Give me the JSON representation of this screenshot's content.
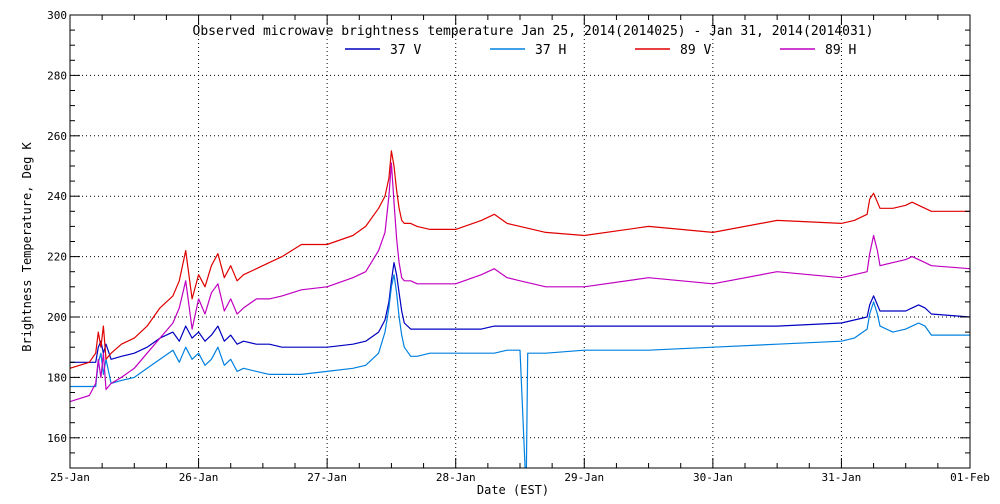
{
  "chart_data": {
    "type": "line",
    "title": "Observed microwave brightness temperature Jan 25, 2014(2014025) - Jan 31, 2014(2014031)",
    "xlabel": "Date (EST)",
    "ylabel": "Brightness Temperature, Deg K",
    "xlim": [
      0,
      7
    ],
    "ylim": [
      150,
      300
    ],
    "grid": true,
    "legend_position": "top-center",
    "x_ticks": [
      {
        "value": 0,
        "label": "25-Jan"
      },
      {
        "value": 1,
        "label": "26-Jan"
      },
      {
        "value": 2,
        "label": "27-Jan"
      },
      {
        "value": 3,
        "label": "28-Jan"
      },
      {
        "value": 4,
        "label": "29-Jan"
      },
      {
        "value": 5,
        "label": "30-Jan"
      },
      {
        "value": 6,
        "label": "31-Jan"
      },
      {
        "value": 7,
        "label": "01-Feb"
      }
    ],
    "y_ticks": [
      160,
      180,
      200,
      220,
      240,
      260,
      280,
      300
    ],
    "series": [
      {
        "name": "37 V",
        "color": "#0000c0",
        "x": [
          0,
          0.2,
          0.22,
          0.24,
          0.26,
          0.28,
          0.32,
          0.4,
          0.5,
          0.6,
          0.7,
          0.8,
          0.85,
          0.9,
          0.95,
          1.0,
          1.05,
          1.1,
          1.15,
          1.2,
          1.25,
          1.3,
          1.35,
          1.45,
          1.55,
          1.65,
          1.8,
          2.0,
          2.2,
          2.3,
          2.4,
          2.45,
          2.48,
          2.5,
          2.52,
          2.54,
          2.56,
          2.58,
          2.6,
          2.65,
          2.7,
          2.8,
          3.0,
          3.2,
          3.3,
          3.4,
          3.5,
          3.6,
          3.7,
          4.0,
          4.5,
          5.0,
          5.5,
          6.0,
          6.1,
          6.2,
          6.22,
          6.25,
          6.28,
          6.3,
          6.4,
          6.5,
          6.55,
          6.6,
          6.65,
          6.7,
          7.0
        ],
        "y": [
          185,
          185,
          190,
          192,
          188,
          191,
          186,
          187,
          188,
          190,
          193,
          195,
          192,
          197,
          193,
          195,
          192,
          194,
          197,
          192,
          194,
          191,
          192,
          191,
          191,
          190,
          190,
          190,
          191,
          192,
          195,
          199,
          205,
          212,
          218,
          214,
          208,
          202,
          198,
          196,
          196,
          196,
          196,
          196,
          197,
          197,
          197,
          197,
          197,
          197,
          197,
          197,
          197,
          198,
          199,
          200,
          204,
          207,
          204,
          202,
          202,
          202,
          203,
          204,
          203,
          201,
          200
        ]
      },
      {
        "name": "37 H",
        "color": "#0080e0",
        "x": [
          0,
          0.2,
          0.22,
          0.24,
          0.26,
          0.28,
          0.32,
          0.4,
          0.5,
          0.6,
          0.7,
          0.8,
          0.85,
          0.9,
          0.95,
          1.0,
          1.05,
          1.1,
          1.15,
          1.2,
          1.25,
          1.3,
          1.35,
          1.45,
          1.55,
          1.65,
          1.8,
          2.0,
          2.2,
          2.3,
          2.4,
          2.45,
          2.48,
          2.5,
          2.52,
          2.54,
          2.56,
          2.58,
          2.6,
          2.65,
          2.7,
          2.8,
          3.0,
          3.2,
          3.3,
          3.4,
          3.5,
          3.54,
          3.55,
          3.56,
          3.6,
          3.7,
          4.0,
          4.5,
          5.0,
          5.5,
          6.0,
          6.1,
          6.2,
          6.22,
          6.25,
          6.28,
          6.3,
          6.4,
          6.5,
          6.55,
          6.6,
          6.65,
          6.7,
          7.0
        ],
        "y": [
          177,
          177,
          185,
          188,
          181,
          186,
          178,
          179,
          180,
          183,
          186,
          189,
          185,
          190,
          186,
          188,
          184,
          186,
          190,
          184,
          186,
          182,
          183,
          182,
          181,
          181,
          181,
          182,
          183,
          184,
          188,
          195,
          203,
          210,
          214,
          208,
          200,
          194,
          190,
          187,
          187,
          188,
          188,
          188,
          188,
          189,
          189,
          150,
          150,
          188,
          188,
          188,
          189,
          189,
          190,
          191,
          192,
          193,
          196,
          201,
          205,
          201,
          197,
          195,
          196,
          197,
          198,
          197,
          194,
          194
        ]
      },
      {
        "name": "89 V",
        "color": "#e00000",
        "x": [
          0,
          0.15,
          0.2,
          0.22,
          0.24,
          0.26,
          0.28,
          0.32,
          0.4,
          0.5,
          0.6,
          0.7,
          0.8,
          0.85,
          0.9,
          0.95,
          1.0,
          1.05,
          1.1,
          1.15,
          1.2,
          1.25,
          1.3,
          1.35,
          1.45,
          1.55,
          1.65,
          1.8,
          2.0,
          2.2,
          2.3,
          2.4,
          2.45,
          2.48,
          2.5,
          2.52,
          2.54,
          2.56,
          2.58,
          2.6,
          2.65,
          2.7,
          2.8,
          3.0,
          3.2,
          3.3,
          3.4,
          3.5,
          3.6,
          3.7,
          4.0,
          4.5,
          5.0,
          5.5,
          6.0,
          6.1,
          6.2,
          6.22,
          6.25,
          6.28,
          6.3,
          6.4,
          6.5,
          6.55,
          6.6,
          6.65,
          6.7,
          7.0
        ],
        "y": [
          183,
          185,
          188,
          195,
          190,
          197,
          186,
          188,
          191,
          193,
          197,
          203,
          207,
          212,
          222,
          206,
          214,
          210,
          217,
          221,
          213,
          217,
          212,
          214,
          216,
          218,
          220,
          224,
          224,
          227,
          230,
          236,
          240,
          246,
          255,
          250,
          242,
          236,
          232,
          231,
          231,
          230,
          229,
          229,
          232,
          234,
          231,
          230,
          229,
          228,
          227,
          230,
          228,
          232,
          231,
          232,
          234,
          239,
          241,
          238,
          236,
          236,
          237,
          238,
          237,
          236,
          235,
          235
        ]
      },
      {
        "name": "89 H",
        "color": "#c000c0",
        "x": [
          0,
          0.15,
          0.2,
          0.22,
          0.24,
          0.26,
          0.28,
          0.32,
          0.4,
          0.5,
          0.6,
          0.7,
          0.8,
          0.85,
          0.9,
          0.95,
          1.0,
          1.05,
          1.1,
          1.15,
          1.2,
          1.25,
          1.3,
          1.35,
          1.45,
          1.55,
          1.65,
          1.8,
          2.0,
          2.2,
          2.3,
          2.4,
          2.45,
          2.48,
          2.5,
          2.52,
          2.54,
          2.56,
          2.58,
          2.6,
          2.65,
          2.7,
          2.8,
          3.0,
          3.2,
          3.3,
          3.4,
          3.5,
          3.6,
          3.7,
          4.0,
          4.5,
          5.0,
          5.5,
          6.0,
          6.1,
          6.2,
          6.22,
          6.25,
          6.28,
          6.3,
          6.4,
          6.5,
          6.55,
          6.6,
          6.65,
          6.7,
          7.0
        ],
        "y": [
          172,
          174,
          178,
          186,
          180,
          188,
          176,
          178,
          180,
          183,
          188,
          193,
          198,
          203,
          212,
          196,
          206,
          201,
          208,
          211,
          202,
          206,
          201,
          203,
          206,
          206,
          207,
          209,
          210,
          213,
          215,
          222,
          228,
          240,
          251,
          238,
          226,
          218,
          213,
          212,
          212,
          211,
          211,
          211,
          214,
          216,
          213,
          212,
          211,
          210,
          210,
          213,
          211,
          215,
          213,
          214,
          215,
          221,
          227,
          222,
          217,
          218,
          219,
          220,
          219,
          218,
          217,
          216
        ]
      }
    ]
  }
}
